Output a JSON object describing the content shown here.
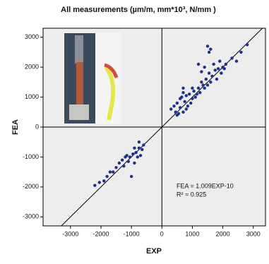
{
  "chart_data": {
    "type": "scatter",
    "title": "All measurements (µm/m, mm*10³, N/mm )",
    "x_label": "EXP",
    "y_label": "FEA",
    "annotations": [
      "FEA = 1.009EXP-10",
      "R² = 0.925"
    ],
    "color": "#1f2f8c",
    "xlim": [
      -3900,
      3400
    ],
    "ylim": [
      -3300,
      3300
    ],
    "xticks": [
      -3000,
      -2000,
      -1000,
      0,
      1000,
      2000,
      3000
    ],
    "yticks": [
      -3000,
      -2000,
      -1000,
      0,
      1000,
      2000,
      3000
    ],
    "x": [
      -2200,
      -2050,
      -1900,
      -1800,
      -1700,
      -1600,
      -1500,
      -1400,
      -1300,
      -1250,
      -1200,
      -1150,
      -1100,
      -1050,
      -1000,
      -950,
      -900,
      -850,
      -800,
      -750,
      -700,
      -650,
      -600,
      -750,
      -900,
      300,
      400,
      450,
      500,
      550,
      600,
      650,
      700,
      750,
      800,
      850,
      900,
      950,
      1000,
      1050,
      1100,
      1150,
      1200,
      1250,
      1300,
      1350,
      1400,
      1450,
      1500,
      1550,
      1600,
      1650,
      1700,
      1750,
      1800,
      1850,
      1900,
      1950,
      2000,
      2050,
      2100,
      2300,
      2450,
      2600,
      2800,
      1500,
      1550,
      1600,
      1400,
      1300,
      1200,
      1000,
      700,
      800,
      600,
      500,
      700
    ],
    "y": [
      -1950,
      -1850,
      -1800,
      -1650,
      -1500,
      -1500,
      -1350,
      -1200,
      -1100,
      -1300,
      -1000,
      -950,
      -1150,
      -1000,
      -1650,
      -900,
      -1200,
      -850,
      -1000,
      -700,
      -950,
      -750,
      -600,
      -500,
      -700,
      600,
      700,
      500,
      800,
      450,
      650,
      1000,
      500,
      850,
      600,
      700,
      1100,
      800,
      950,
      1200,
      1000,
      1100,
      1300,
      1150,
      1500,
      1400,
      1300,
      1600,
      1400,
      1800,
      1500,
      1700,
      2100,
      1900,
      1600,
      1950,
      2200,
      1800,
      2000,
      1950,
      2100,
      2300,
      2200,
      2500,
      2750,
      2700,
      2500,
      2600,
      2000,
      1850,
      2100,
      1300,
      1150,
      1050,
      950,
      400,
      1300
    ]
  }
}
